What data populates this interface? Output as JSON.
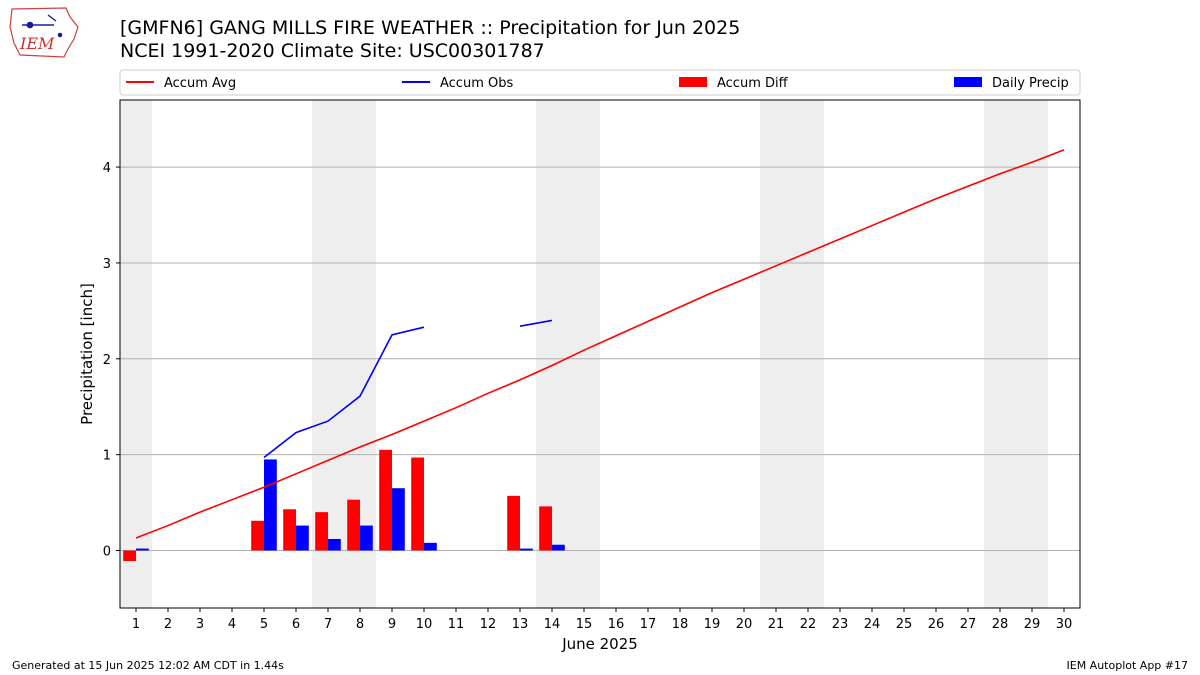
{
  "title_line1": "[GMFN6] GANG MILLS FIRE WEATHER :: Precipitation for Jun 2025",
  "title_line2": "NCEI 1991-2020 Climate Site: USC00301787",
  "logo_text": "IEM",
  "footer_left": "Generated at 15 Jun 2025 12:02 AM CDT in 1.44s",
  "footer_right": "IEM Autoplot App #17",
  "colors": {
    "accum_avg": "#ff0000",
    "accum_obs": "#0000ff",
    "accum_diff": "#ff0000",
    "daily_precip": "#0000ff",
    "weekend_shade": "#eeeeee",
    "grid": "#b0b0b0"
  },
  "chart_data": {
    "type": "bar",
    "xlabel": "June 2025",
    "ylabel": "Precipitation [inch]",
    "xlim": [
      0.5,
      30.5
    ],
    "ylim": [
      -0.6,
      4.7
    ],
    "yticks": [
      0,
      1,
      2,
      3,
      4
    ],
    "grid": true,
    "legend_placement": "top",
    "legend": [
      "Accum Avg",
      "Accum Obs",
      "Accum Diff",
      "Daily Precip"
    ],
    "weekend_shading": [
      [
        0.5,
        1.5
      ],
      [
        6.5,
        8.5
      ],
      [
        13.5,
        15.5
      ],
      [
        20.5,
        22.5
      ],
      [
        27.5,
        29.5
      ]
    ],
    "x": [
      1,
      2,
      3,
      4,
      5,
      6,
      7,
      8,
      9,
      10,
      11,
      12,
      13,
      14,
      15,
      16,
      17,
      18,
      19,
      20,
      21,
      22,
      23,
      24,
      25,
      26,
      27,
      28,
      29,
      30
    ],
    "series": [
      {
        "name": "Accum Avg",
        "kind": "line",
        "values": [
          0.13,
          0.26,
          0.4,
          0.53,
          0.66,
          0.8,
          0.94,
          1.08,
          1.21,
          1.35,
          1.49,
          1.64,
          1.78,
          1.93,
          2.09,
          2.24,
          2.39,
          2.54,
          2.69,
          2.83,
          2.97,
          3.11,
          3.25,
          3.39,
          3.53,
          3.67,
          3.8,
          3.93,
          4.05,
          4.18
        ]
      },
      {
        "name": "Accum Obs",
        "kind": "line",
        "values": [
          null,
          null,
          null,
          null,
          0.97,
          1.23,
          1.35,
          1.61,
          2.25,
          2.33,
          null,
          null,
          2.34,
          2.4,
          null,
          null,
          null,
          null,
          null,
          null,
          null,
          null,
          null,
          null,
          null,
          null,
          null,
          null,
          null,
          null
        ]
      },
      {
        "name": "Accum Diff",
        "kind": "bar",
        "values": [
          -0.11,
          null,
          null,
          null,
          0.31,
          0.43,
          0.4,
          0.53,
          1.05,
          0.97,
          null,
          null,
          0.57,
          0.46,
          null,
          null,
          null,
          null,
          null,
          null,
          null,
          null,
          null,
          null,
          null,
          null,
          null,
          null,
          null,
          null
        ]
      },
      {
        "name": "Daily Precip",
        "kind": "bar",
        "values": [
          0.02,
          null,
          null,
          null,
          0.95,
          0.26,
          0.12,
          0.26,
          0.65,
          0.08,
          null,
          null,
          0.02,
          0.06,
          null,
          null,
          null,
          null,
          null,
          null,
          null,
          null,
          null,
          null,
          null,
          null,
          null,
          null,
          null,
          null
        ]
      }
    ]
  }
}
